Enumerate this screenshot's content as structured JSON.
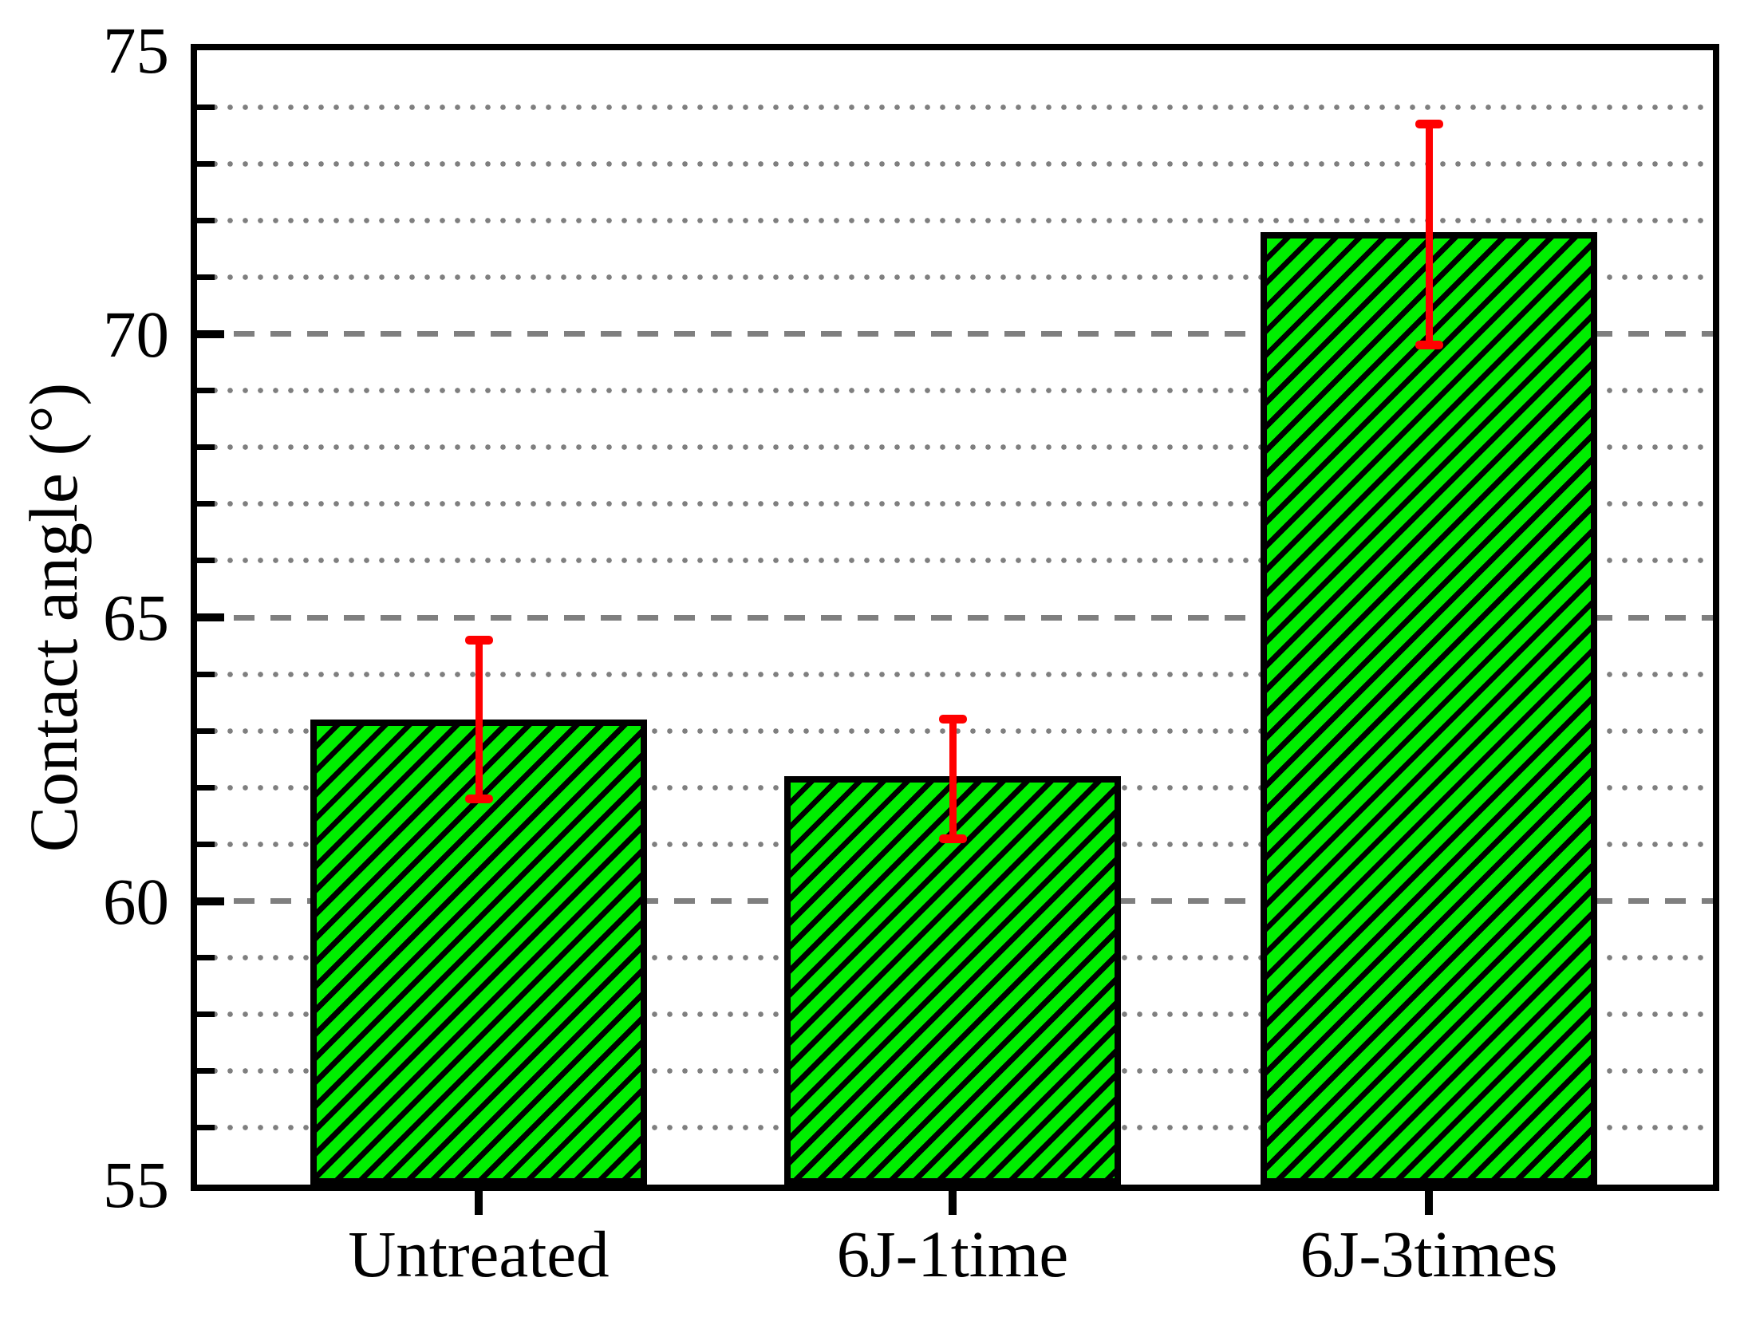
{
  "chart_data": {
    "type": "bar",
    "title": "",
    "xlabel": "",
    "ylabel": "Contact angle (°)",
    "categories": [
      "Untreated",
      "6J-1time",
      "6J-3times"
    ],
    "values": [
      63.2,
      62.2,
      71.8
    ],
    "error_plus": [
      1.4,
      1.0,
      1.9
    ],
    "error_minus": [
      1.4,
      1.1,
      2.0
    ],
    "ylim": [
      55,
      75
    ],
    "yticks_major": [
      75,
      70,
      65,
      60,
      55
    ],
    "yticklabels": [
      "75",
      "70",
      "65",
      "60",
      "55"
    ],
    "minor_tick_step": 1,
    "grid": {
      "major_style": "dashed",
      "minor_style": "dotted",
      "color": "#7F7F7F"
    },
    "legend": "none",
    "colors": {
      "bar_fill": "#00EE00",
      "bar_hatch": "#000000",
      "bar_border": "#000000",
      "error_bar": "#FF0000",
      "axis": "#000000",
      "background": "#FFFFFF"
    },
    "hatch": "diagonal-forward"
  }
}
